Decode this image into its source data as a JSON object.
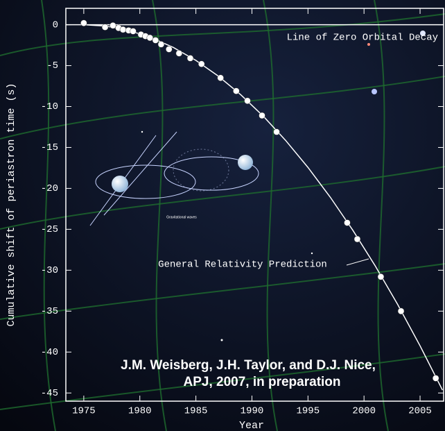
{
  "chart_data": {
    "type": "scatter",
    "y_label": "Cumulative shift of periastron time (s)",
    "x_label": "Year",
    "xlim": [
      1973.4,
      2007.1
    ],
    "ylim": [
      -46,
      2
    ],
    "xticks": [
      1975,
      1980,
      1985,
      1990,
      1995,
      2000,
      2005
    ],
    "yticks": [
      0,
      -5,
      -10,
      -15,
      -20,
      -25,
      -30,
      -35,
      -40,
      -45
    ],
    "reference_line": {
      "value": 0,
      "label": "Line of Zero Orbital Decay"
    },
    "series": [
      {
        "name": "General Relativity Prediction",
        "type": "line",
        "color": "#ffffff",
        "x": [
          1975,
          1977,
          1979,
          1981,
          1983,
          1985,
          1987,
          1989,
          1991,
          1993,
          1995,
          1997,
          1999,
          2001,
          2003,
          2005,
          2007
        ],
        "values": [
          0,
          -0.17,
          -0.7,
          -1.57,
          -2.79,
          -4.36,
          -6.28,
          -8.55,
          -11.16,
          -14.13,
          -17.44,
          -21.1,
          -25.11,
          -29.47,
          -34.18,
          -39.24,
          -44.65
        ]
      },
      {
        "type": "scatter",
        "color": "#ffffff",
        "x": [
          1975.0,
          1976.9,
          1977.6,
          1978.1,
          1978.5,
          1979.0,
          1979.4,
          1980.1,
          1980.5,
          1980.9,
          1981.4,
          1981.9,
          1982.6,
          1983.5,
          1984.5,
          1985.5,
          1987.2,
          1988.6,
          1989.6,
          1990.9,
          1992.2,
          1998.5,
          1999.4,
          2001.5,
          2003.3,
          2006.4
        ],
        "values": [
          0.2,
          -0.3,
          -0.1,
          -0.4,
          -0.6,
          -0.7,
          -0.8,
          -1.2,
          -1.4,
          -1.6,
          -1.9,
          -2.4,
          -3.0,
          -3.5,
          -4.1,
          -4.8,
          -6.5,
          -8.1,
          -9.3,
          -11.1,
          -13.1,
          -24.2,
          -26.2,
          -30.8,
          -35.0,
          -43.2
        ]
      }
    ],
    "annotations": [
      "J.M. Weisberg, J.H. Taylor, and D.J. Nice,",
      "APJ, 2007, in preparation"
    ],
    "illustration_label": "Gravitational waves"
  }
}
